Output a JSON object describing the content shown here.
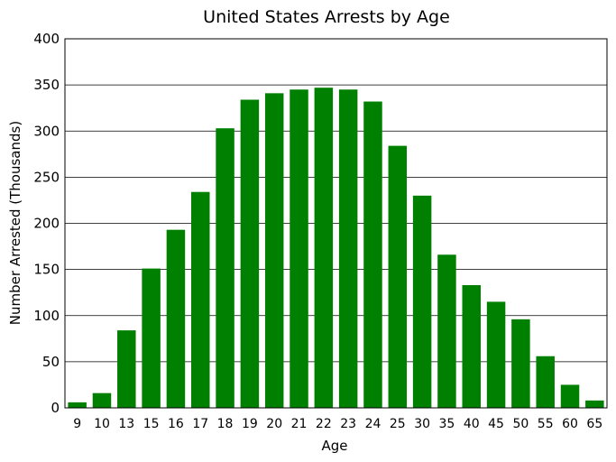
{
  "chart_data": {
    "type": "bar",
    "title": "United States Arrests by Age",
    "xlabel": "Age",
    "ylabel": "Number Arrested (Thousands)",
    "ylim": [
      0,
      400
    ],
    "yticks": [
      0,
      50,
      100,
      150,
      200,
      250,
      300,
      350,
      400
    ],
    "grid": true,
    "bar_color": "#008000",
    "categories": [
      "9",
      "10",
      "13",
      "15",
      "16",
      "17",
      "18",
      "19",
      "20",
      "21",
      "22",
      "23",
      "24",
      "25",
      "30",
      "35",
      "40",
      "45",
      "50",
      "55",
      "60",
      "65"
    ],
    "values": [
      6,
      16,
      84,
      151,
      193,
      234,
      303,
      334,
      341,
      345,
      347,
      345,
      332,
      284,
      230,
      166,
      133,
      115,
      96,
      56,
      25,
      8
    ]
  }
}
